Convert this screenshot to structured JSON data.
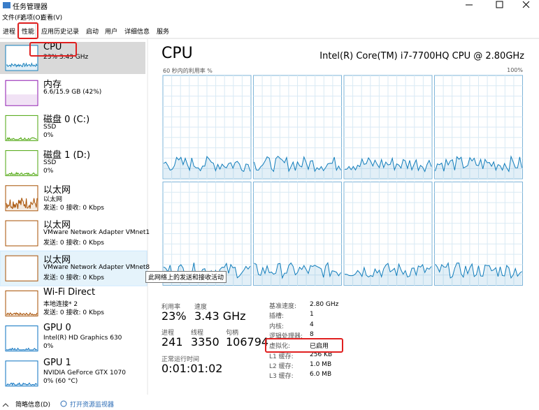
{
  "window": {
    "title": "任务管理器"
  },
  "menu": [
    "文件(F)",
    "选项(O)",
    "查看(V)"
  ],
  "tabs": [
    "进程",
    "性能",
    "应用历史记录",
    "启动",
    "用户",
    "详细信息",
    "服务"
  ],
  "sidebar": [
    {
      "name": "CPU",
      "line1": "23% 3.43 GHz",
      "line2": null,
      "color": "#117dbb"
    },
    {
      "name": "内存",
      "line1": "6.6/15.9 GB (42%)",
      "line2": null,
      "color": "#8b12ae"
    },
    {
      "name": "磁盘 0 (C:)",
      "line1": "SSD",
      "line2": "0%",
      "color": "#4da60c"
    },
    {
      "name": "磁盘 1 (D:)",
      "line1": "SSD",
      "line2": "0%",
      "color": "#4da60c"
    },
    {
      "name": "以太网",
      "line1": "以太网",
      "line2": "发送: 0 接收: 0 Kbps",
      "color": "#a74f01"
    },
    {
      "name": "以太网",
      "line1": "VMware Network Adapter VMnet1",
      "line2": "发送: 0 接收: 0 Kbps",
      "color": "#a74f01"
    },
    {
      "name": "以太网",
      "line1": "VMware Network Adapter VMnet8",
      "line2": "发送: 0 接收: 0 Kbps",
      "color": "#a74f01"
    },
    {
      "name": "Wi-Fi Direct",
      "line1": "本地连接* 2",
      "line2": "发送: 0 接收: 0 Kbps",
      "color": "#a74f01"
    },
    {
      "name": "GPU 0",
      "line1": "Intel(R) HD Graphics 630",
      "line2": "0%",
      "color": "#0b72c0"
    },
    {
      "name": "GPU 1",
      "line1": "NVIDIA GeForce GTX 1070",
      "line2": "0% (60 °C)",
      "color": "#0b72c0"
    }
  ],
  "tooltip": "此网络上的发送和接收活动",
  "main": {
    "title": "CPU",
    "model": "Intel(R) Core(TM) i7-7700HQ CPU @ 2.80GHz",
    "graph_label": "60 秒内的利用率 %",
    "graph_max": "100%",
    "stats": [
      {
        "label": "利用率",
        "value": "23%"
      },
      {
        "label": "速度",
        "value": "3.43 GHz"
      },
      {
        "label": "进程",
        "value": "241"
      },
      {
        "label": "线程",
        "value": "3350"
      },
      {
        "label": "句柄",
        "value": "106794"
      },
      {
        "label": "正常运行时间",
        "value": "0:01:01:02"
      }
    ],
    "details": [
      {
        "label": "基准速度:",
        "value": "2.80 GHz"
      },
      {
        "label": "插槽:",
        "value": "1"
      },
      {
        "label": "内核:",
        "value": "4"
      },
      {
        "label": "逻辑处理器:",
        "value": "8"
      },
      {
        "label": "虚拟化:",
        "value": "已启用"
      },
      {
        "label": "L1 缓存:",
        "value": "256 KB"
      },
      {
        "label": "L2 缓存:",
        "value": "1.0 MB"
      },
      {
        "label": "L3 缓存:",
        "value": "6.0 MB"
      }
    ]
  },
  "footer": {
    "collapse": "简略信息(D)",
    "monitor": "打开资源监视器"
  }
}
